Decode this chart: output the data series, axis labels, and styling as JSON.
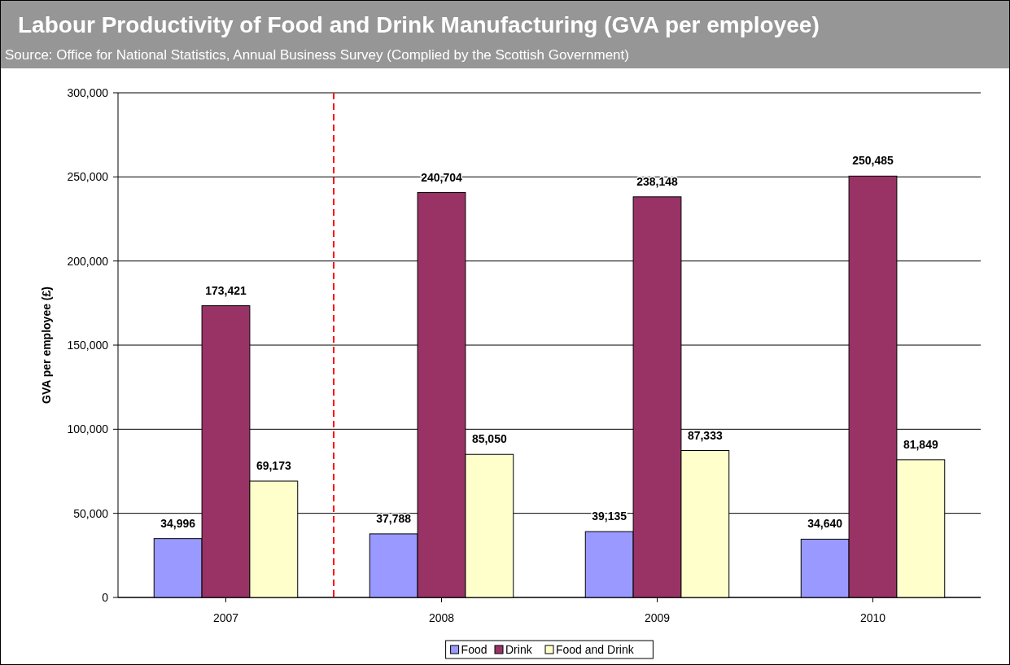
{
  "chart_data": {
    "type": "bar",
    "title": "Labour Productivity of Food and Drink Manufacturing (GVA per employee)",
    "subtitle": "Source:  Office for National Statistics, Annual Business Survey  (Complied by the Scottish Government)",
    "ylabel": "GVA per employee (£)",
    "x": [
      2007,
      2008,
      2009,
      2010
    ],
    "xlim": [
      2006.5,
      2010.5
    ],
    "xticks": [
      2007,
      2008,
      2009,
      2010
    ],
    "ylim": [
      0,
      300000
    ],
    "yticks": [
      {
        "value": 0,
        "label": "0"
      },
      {
        "value": 50000,
        "label": "50,000"
      },
      {
        "value": 100000,
        "label": "100,000"
      },
      {
        "value": 150000,
        "label": "150,000"
      },
      {
        "value": 200000,
        "label": "200,000"
      },
      {
        "value": 250000,
        "label": "250,000"
      },
      {
        "value": 300000,
        "label": "300,000"
      }
    ],
    "grid": "y",
    "legend": "bottom",
    "ref_lines": [
      {
        "axis": "x",
        "value": 2007.5,
        "color": "#ff0000",
        "line_style": "dashed"
      }
    ],
    "series": [
      {
        "name": "Food",
        "color": "#9999ff",
        "values": [
          34996,
          37788,
          39135,
          34640
        ],
        "value_labels": [
          "34,996",
          "37,788",
          "39,135",
          "34,640"
        ]
      },
      {
        "name": "Drink",
        "color": "#993366",
        "values": [
          173421,
          240704,
          238148,
          250485
        ],
        "value_labels": [
          "173,421",
          "240,704",
          "238,148",
          "250,485"
        ]
      },
      {
        "name": "Food and Drink",
        "color": "#ffffcc",
        "values": [
          69173,
          85050,
          87333,
          81849
        ],
        "value_labels": [
          "69,173",
          "85,050",
          "87,333",
          "81,849"
        ]
      }
    ]
  }
}
